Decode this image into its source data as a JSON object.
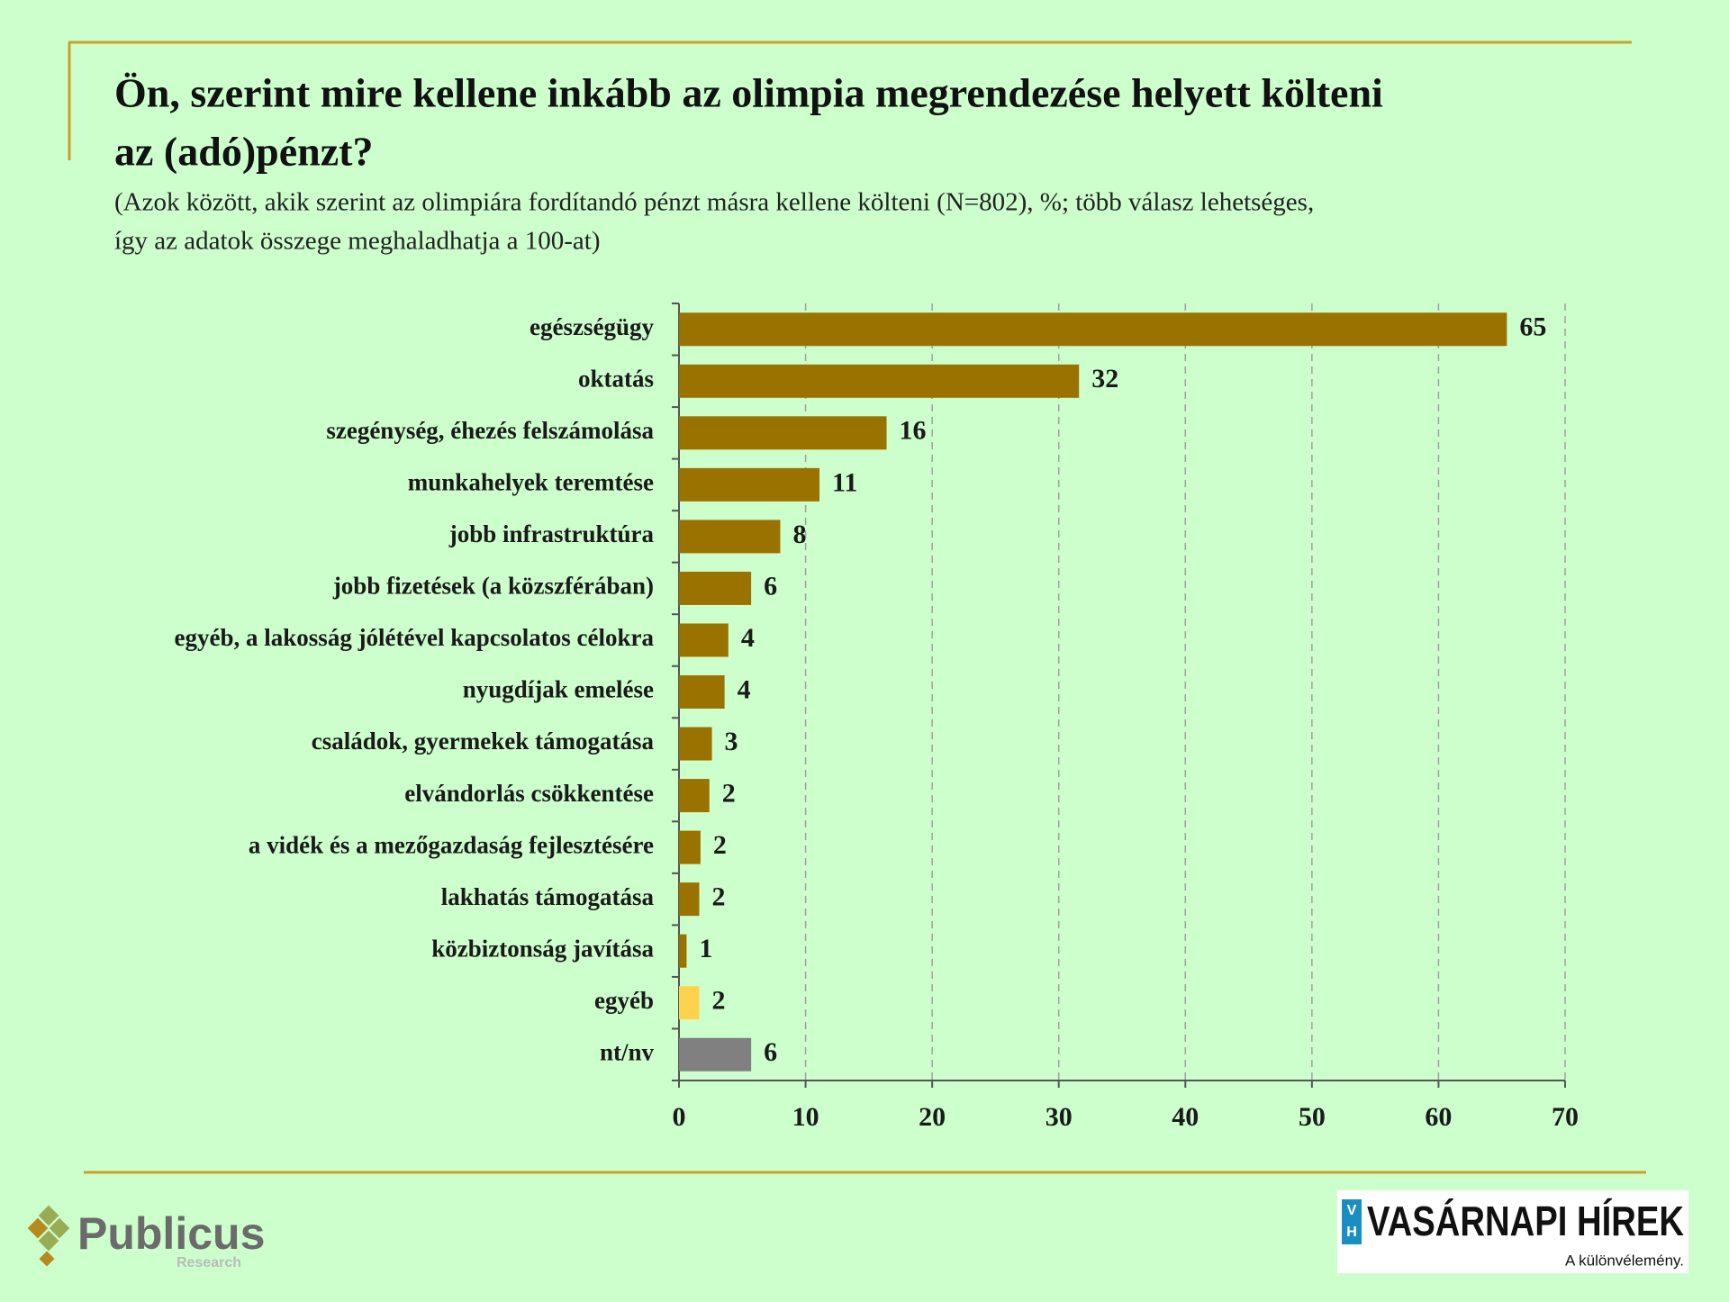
{
  "chart_data": {
    "type": "barh",
    "title_lines": [
      "Ön, szerint mire kellene inkább az olimpia megrendezése helyett költeni",
      "az (adó)pénzt?"
    ],
    "subtitle_lines": [
      "(Azok között, akik szerint az olimpiára fordítandó pénzt másra kellene költeni (N=802), %; több válasz lehetséges,",
      "így az adatok összege meghaladhatja a 100-at)"
    ],
    "categories": [
      "egészségügy",
      "oktatás",
      "szegénység, éhezés felszámolása",
      "munkahelyek teremtése",
      "jobb infrastruktúra",
      "jobb fizetések (a közszférában)",
      "egyéb, a lakosság jólétével kapcsolatos célokra",
      "nyugdíjak emelése",
      "családok, gyermekek támogatása",
      "elvándorlás csökkentése",
      "a vidék és a mezőgazdaság fejlesztésére",
      "lakhatás támogatása",
      "közbiztonság javítása",
      "egyéb",
      "nt/nv"
    ],
    "values": [
      65.4,
      31.6,
      16.4,
      11.1,
      8.0,
      5.7,
      3.9,
      3.6,
      2.6,
      2.4,
      1.7,
      1.6,
      0.6,
      1.6,
      5.7
    ],
    "value_labels": [
      "65",
      "32",
      "16",
      "11",
      "8",
      "6",
      "4",
      "4",
      "3",
      "2",
      "2",
      "2",
      "1",
      "2",
      "6"
    ],
    "colors": [
      "#9a7200",
      "#9a7200",
      "#9a7200",
      "#9a7200",
      "#9a7200",
      "#9a7200",
      "#9a7200",
      "#9a7200",
      "#9a7200",
      "#9a7200",
      "#9a7200",
      "#9a7200",
      "#9a7200",
      "#ffd24d",
      "#808080"
    ],
    "xlim": [
      0,
      70
    ],
    "xticks": [
      0,
      10,
      20,
      30,
      40,
      50,
      60,
      70
    ],
    "grid": true
  },
  "logos": {
    "publicus": "Publicus",
    "publicus_sub": "Research",
    "vh_mark": [
      "V",
      "H"
    ],
    "vh_name": "VASÁRNAPI HÍREK",
    "vh_tagline": "A különvélemény."
  }
}
